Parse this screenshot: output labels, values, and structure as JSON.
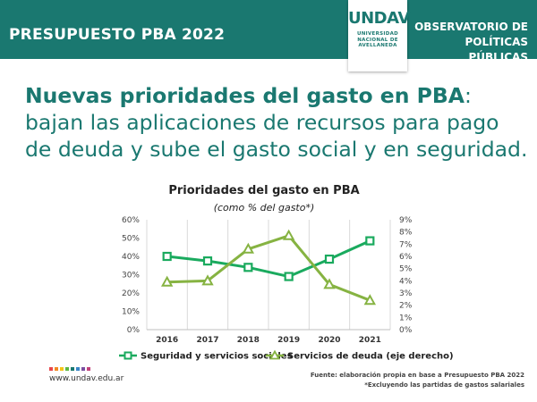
{
  "header": {
    "title": "PRESUPUESTO PBA 2022",
    "logo": {
      "mark": "UNDAV",
      "lines": [
        "UNIVERSIDAD",
        "NACIONAL DE",
        "AVELLANEDA"
      ]
    },
    "observatory": [
      "OBSERVATORIO DE",
      "POLÍTICAS PÚBLICAS"
    ]
  },
  "headline": {
    "bold": "Nuevas prioridades del gasto en PBA",
    "rest": ": bajan las aplicaciones de recursos para pago de deuda y sube el gasto social y en seguridad."
  },
  "chart_data": {
    "type": "line",
    "title": "Prioridades del gasto en PBA",
    "subtitle": "(como % del gasto*)",
    "x": [
      "2016",
      "2017",
      "2018",
      "2019",
      "2020",
      "2021"
    ],
    "y_left": {
      "ticks": [
        "0%",
        "10%",
        "20%",
        "30%",
        "40%",
        "50%",
        "60%"
      ],
      "range": [
        0,
        60
      ]
    },
    "y_right": {
      "ticks": [
        "0%",
        "1%",
        "2%",
        "3%",
        "4%",
        "5%",
        "6%",
        "7%",
        "8%",
        "9%"
      ],
      "range": [
        0,
        9
      ]
    },
    "grid": "vertical",
    "legend_position": "bottom",
    "series": [
      {
        "name": "Seguridad y servicios sociales",
        "axis": "left",
        "marker": "square",
        "color": "#1aaa5e",
        "values": [
          40,
          37.5,
          34,
          29,
          38.5,
          48.5
        ]
      },
      {
        "name": "Servicios de deuda (eje derecho)",
        "axis": "right",
        "marker": "triangle",
        "color": "#86b342",
        "values": [
          3.9,
          4.0,
          6.6,
          7.7,
          3.7,
          2.4
        ]
      }
    ]
  },
  "footer": {
    "site": "www.undav.edu.ar",
    "source": "Fuente: elaboración propia en base a Presupuesto PBA 2022",
    "note": "*Excluyendo las partidas de gastos salariales",
    "dot_colors": [
      "#e8474b",
      "#f08a24",
      "#f5c518",
      "#5bb745",
      "#1a7870",
      "#3a86c8",
      "#7a4fa0",
      "#c2417a"
    ]
  }
}
